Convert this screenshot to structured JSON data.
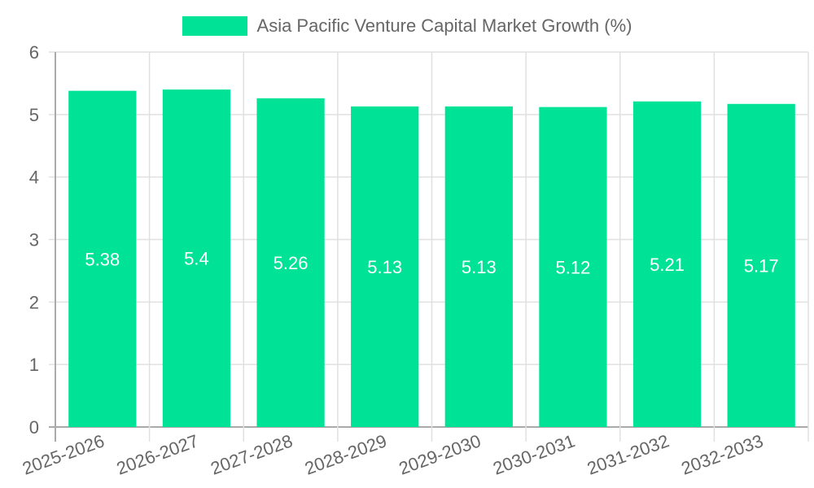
{
  "chart_data": {
    "type": "bar",
    "title": "",
    "legend": [
      "Asia Pacific Venture Capital Market Growth (%)"
    ],
    "legend_position": "top",
    "categories": [
      "2025-2026",
      "2026-2027",
      "2027-2028",
      "2028-2029",
      "2029-2030",
      "2030-2031",
      "2031-2032",
      "2032-2033"
    ],
    "series": [
      {
        "name": "Asia Pacific Venture Capital Market Growth (%)",
        "values": [
          5.38,
          5.4,
          5.26,
          5.13,
          5.13,
          5.12,
          5.21,
          5.17
        ],
        "color": "#00e396"
      }
    ],
    "data_labels": [
      "5.38",
      "5.4",
      "5.26",
      "5.13",
      "5.13",
      "5.12",
      "5.21",
      "5.17"
    ],
    "xlabel": "",
    "ylabel": "",
    "ylim": [
      0,
      6
    ],
    "yticks": [
      "0",
      "1",
      "2",
      "3",
      "4",
      "5",
      "6"
    ],
    "grid": true
  },
  "legend": {
    "label": "Asia Pacific Venture Capital Market Growth (%)",
    "color": "#00e396"
  }
}
